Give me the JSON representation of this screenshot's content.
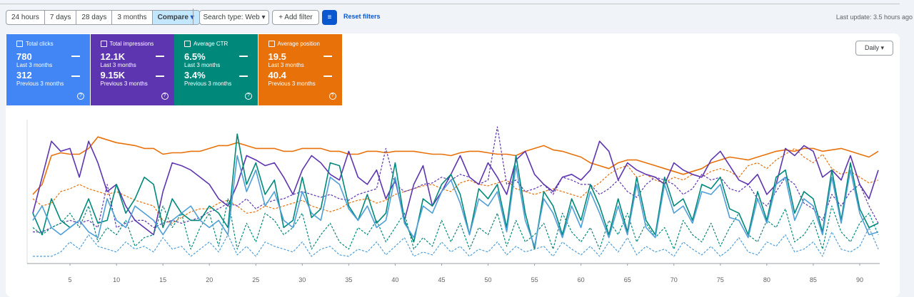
{
  "toolbar": {
    "ranges": [
      "24 hours",
      "7 days",
      "28 days",
      "3 months"
    ],
    "compare": "Compare",
    "search_type": "Search type: Web",
    "add_filter": "Add filter",
    "reset": "Reset filters",
    "last_update": "Last update: 3.5 hours ago"
  },
  "granularity": "Daily",
  "metrics": [
    {
      "title": "Total clicks",
      "current": "780",
      "current_label": "Last 3 months",
      "previous": "312",
      "previous_label": "Previous 3 months",
      "color": "#4285f4"
    },
    {
      "title": "Total impressions",
      "current": "12.1K",
      "current_label": "Last 3 months",
      "previous": "9.15K",
      "previous_label": "Previous 3 months",
      "color": "#5e35b1"
    },
    {
      "title": "Average CTR",
      "current": "6.5%",
      "current_label": "Last 3 months",
      "previous": "3.4%",
      "previous_label": "Previous 3 months",
      "color": "#00897b"
    },
    {
      "title": "Average position",
      "current": "19.5",
      "current_label": "Last 3 months",
      "previous": "40.4",
      "previous_label": "Previous 3 months",
      "color": "#e8710a"
    }
  ],
  "chart_data": {
    "type": "line",
    "x": [
      1,
      2,
      3,
      4,
      5,
      6,
      7,
      8,
      9,
      10,
      11,
      12,
      13,
      14,
      15,
      16,
      17,
      18,
      19,
      20,
      21,
      22,
      23,
      24,
      25,
      26,
      27,
      28,
      29,
      30,
      31,
      32,
      33,
      34,
      35,
      36,
      37,
      38,
      39,
      40,
      41,
      42,
      43,
      44,
      45,
      46,
      47,
      48,
      49,
      50,
      51,
      52,
      53,
      54,
      55,
      56,
      57,
      58,
      59,
      60,
      61,
      62,
      63,
      64,
      65,
      66,
      67,
      68,
      69,
      70,
      71,
      72,
      73,
      74,
      75,
      76,
      77,
      78,
      79,
      80,
      81,
      82,
      83,
      84,
      85,
      86,
      87,
      88,
      89,
      90,
      91,
      92
    ],
    "xlim": [
      1,
      92
    ],
    "xticks": [
      5,
      10,
      15,
      20,
      25,
      30,
      35,
      40,
      45,
      50,
      55,
      60,
      65,
      70,
      75,
      80,
      85,
      90
    ],
    "ylim": [
      0,
      100
    ],
    "series": [
      {
        "color": "#e8710a",
        "dashed": false,
        "values": [
          48,
          55,
          75,
          77,
          76,
          76,
          80,
          88,
          86,
          84,
          83,
          82,
          80,
          80,
          76,
          77,
          77,
          78,
          78,
          80,
          82,
          82,
          84,
          82,
          80,
          80,
          80,
          78,
          78,
          80,
          80,
          80,
          78,
          78,
          76,
          76,
          78,
          78,
          77,
          78,
          78,
          78,
          77,
          76,
          76,
          75,
          77,
          78,
          78,
          77,
          76,
          76,
          75,
          78,
          80,
          82,
          79,
          78,
          76,
          74,
          70,
          68,
          66,
          70,
          72,
          72,
          70,
          68,
          66,
          64,
          62,
          64,
          66,
          70,
          72,
          74,
          73,
          72,
          74,
          76,
          78,
          79,
          78,
          80,
          80,
          78,
          79,
          80,
          78,
          76,
          74,
          78
        ]
      },
      {
        "color": "#e8710a",
        "dashed": true,
        "values": [
          45,
          40,
          42,
          50,
          52,
          55,
          52,
          50,
          48,
          50,
          47,
          44,
          42,
          40,
          30,
          28,
          32,
          36,
          38,
          38,
          42,
          44,
          40,
          35,
          36,
          40,
          38,
          40,
          42,
          44,
          40,
          38,
          36,
          38,
          42,
          44,
          45,
          42,
          44,
          48,
          50,
          52,
          54,
          55,
          52,
          50,
          56,
          58,
          55,
          54,
          56,
          58,
          52,
          50,
          48,
          50,
          52,
          50,
          48,
          46,
          52,
          56,
          62,
          66,
          68,
          60,
          62,
          58,
          56,
          60,
          58,
          62,
          60,
          64,
          66,
          64,
          60,
          68,
          70,
          66,
          72,
          76,
          80,
          74,
          70,
          76,
          66,
          62,
          64,
          60,
          56,
          58
        ]
      },
      {
        "color": "#5e35b1",
        "dashed": false,
        "values": [
          35,
          60,
          85,
          78,
          80,
          60,
          85,
          70,
          50,
          55,
          40,
          30,
          25,
          20,
          50,
          70,
          68,
          65,
          60,
          55,
          45,
          40,
          55,
          75,
          72,
          68,
          70,
          60,
          48,
          65,
          75,
          70,
          62,
          58,
          78,
          60,
          55,
          65,
          45,
          58,
          30,
          55,
          68,
          40,
          50,
          62,
          75,
          60,
          55,
          70,
          60,
          48,
          72,
          78,
          62,
          55,
          50,
          60,
          62,
          58,
          65,
          85,
          78,
          58,
          70,
          65,
          62,
          60,
          55,
          70,
          65,
          62,
          60,
          72,
          78,
          68,
          58,
          55,
          62,
          48,
          55,
          80,
          75,
          82,
          78,
          60,
          65,
          58,
          75,
          55,
          45,
          65
        ]
      },
      {
        "color": "#5e35b1",
        "dashed": true,
        "values": [
          22,
          22,
          25,
          28,
          30,
          28,
          30,
          25,
          55,
          25,
          28,
          30,
          30,
          25,
          28,
          30,
          28,
          30,
          32,
          36,
          38,
          42,
          40,
          45,
          38,
          42,
          44,
          45,
          48,
          50,
          48,
          46,
          48,
          45,
          44,
          48,
          50,
          52,
          80,
          55,
          50,
          52,
          55,
          56,
          60,
          58,
          62,
          60,
          55,
          58,
          95,
          55,
          58,
          50,
          52,
          55,
          48,
          60,
          58,
          55,
          55,
          48,
          52,
          58,
          50,
          46,
          55,
          60,
          58,
          55,
          48,
          52,
          62,
          58,
          60,
          52,
          50,
          55,
          45,
          40,
          50,
          60,
          55,
          42,
          38,
          30,
          48,
          40,
          50,
          55,
          40,
          28
        ]
      },
      {
        "color": "#00897b",
        "dashed": false,
        "values": [
          35,
          20,
          45,
          30,
          25,
          30,
          45,
          28,
          30,
          55,
          35,
          45,
          60,
          55,
          25,
          45,
          35,
          30,
          30,
          40,
          35,
          25,
          90,
          55,
          70,
          48,
          58,
          25,
          30,
          60,
          32,
          38,
          70,
          68,
          40,
          30,
          48,
          28,
          35,
          70,
          30,
          15,
          45,
          40,
          55,
          62,
          48,
          20,
          52,
          45,
          55,
          25,
          75,
          35,
          10,
          50,
          40,
          20,
          45,
          30,
          55,
          40,
          20,
          45,
          22,
          60,
          30,
          20,
          60,
          40,
          45,
          30,
          55,
          52,
          60,
          38,
          35,
          20,
          50,
          30,
          60,
          65,
          35,
          50,
          45,
          22,
          65,
          30,
          70,
          38,
          25,
          28
        ]
      },
      {
        "color": "#00897b",
        "dashed": true,
        "values": [
          25,
          20,
          25,
          28,
          35,
          25,
          40,
          15,
          25,
          20,
          30,
          12,
          18,
          20,
          40,
          25,
          35,
          10,
          25,
          35,
          12,
          45,
          10,
          28,
          15,
          35,
          30,
          20,
          25,
          35,
          10,
          20,
          28,
          15,
          10,
          25,
          20,
          30,
          15,
          25,
          35,
          10,
          18,
          12,
          30,
          15,
          28,
          10,
          25,
          20,
          35,
          12,
          30,
          15,
          20,
          28,
          10,
          35,
          22,
          15,
          25,
          10,
          30,
          20,
          35,
          15,
          28,
          18,
          25,
          10,
          30,
          20,
          15,
          28,
          12,
          25,
          35,
          20,
          15,
          30,
          25,
          38,
          15,
          20,
          30,
          10,
          40,
          22,
          15,
          28,
          35,
          20
        ]
      },
      {
        "color": "#4f9fd8",
        "dashed": false,
        "values": [
          30,
          40,
          25,
          20,
          25,
          30,
          22,
          18,
          45,
          30,
          25,
          40,
          35,
          30,
          20,
          30,
          35,
          40,
          30,
          25,
          30,
          20,
          75,
          50,
          65,
          40,
          50,
          30,
          25,
          50,
          35,
          30,
          60,
          55,
          38,
          30,
          40,
          25,
          30,
          60,
          28,
          18,
          40,
          35,
          50,
          58,
          42,
          20,
          45,
          40,
          50,
          22,
          68,
          30,
          12,
          45,
          35,
          18,
          40,
          25,
          50,
          35,
          18,
          40,
          20,
          55,
          25,
          18,
          55,
          35,
          40,
          28,
          50,
          48,
          55,
          32,
          30,
          18,
          45,
          28,
          55,
          60,
          30,
          45,
          40,
          20,
          60,
          28,
          65,
          35,
          20,
          22
        ]
      },
      {
        "color": "#4f9fd8",
        "dashed": true,
        "values": [
          5,
          5,
          5,
          8,
          15,
          10,
          20,
          12,
          10,
          8,
          15,
          10,
          12,
          8,
          18,
          10,
          12,
          5,
          10,
          15,
          8,
          20,
          6,
          12,
          5,
          15,
          12,
          10,
          8,
          15,
          5,
          10,
          12,
          6,
          5,
          10,
          8,
          15,
          6,
          12,
          18,
          5,
          8,
          6,
          15,
          8,
          12,
          5,
          10,
          8,
          15,
          6,
          12,
          8,
          10,
          12,
          5,
          15,
          10,
          6,
          12,
          5,
          15,
          8,
          18,
          6,
          12,
          8,
          10,
          5,
          15,
          10,
          6,
          12,
          5,
          10,
          18,
          8,
          6,
          15,
          12,
          20,
          8,
          10,
          15,
          5,
          22,
          10,
          8,
          12,
          25,
          10
        ]
      }
    ]
  }
}
